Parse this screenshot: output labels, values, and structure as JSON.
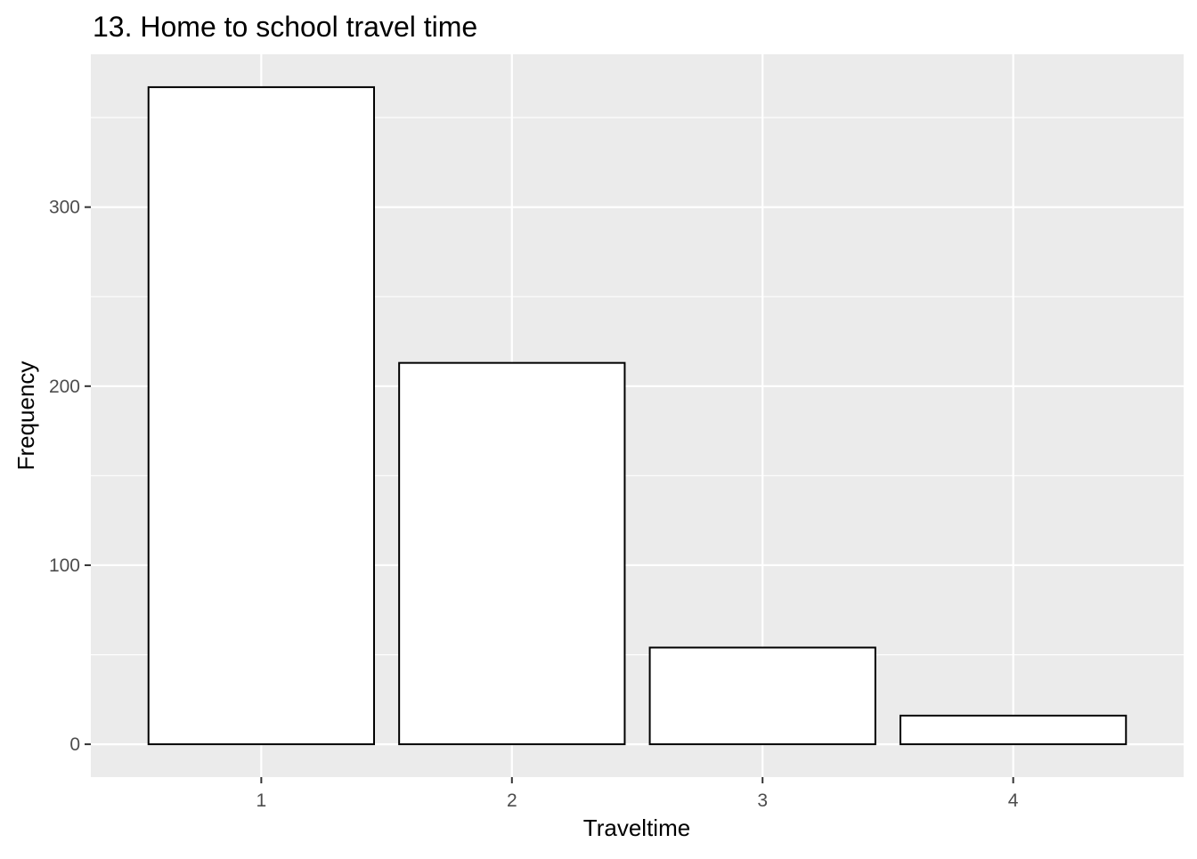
{
  "chart_data": {
    "type": "bar",
    "title": "13. Home to school travel time",
    "xlabel": "Traveltime",
    "ylabel": "Frequency",
    "categories": [
      "1",
      "2",
      "3",
      "4"
    ],
    "values": [
      367,
      213,
      54,
      16
    ],
    "ylim": [
      -18.35,
      385.35
    ],
    "y_ticks": [
      0,
      100,
      200,
      300
    ],
    "grid": true,
    "bar_fill": "#ffffff",
    "bar_stroke": "#000000",
    "panel_background": "#ebebeb",
    "grid_color": "#ffffff",
    "legend": "none"
  }
}
